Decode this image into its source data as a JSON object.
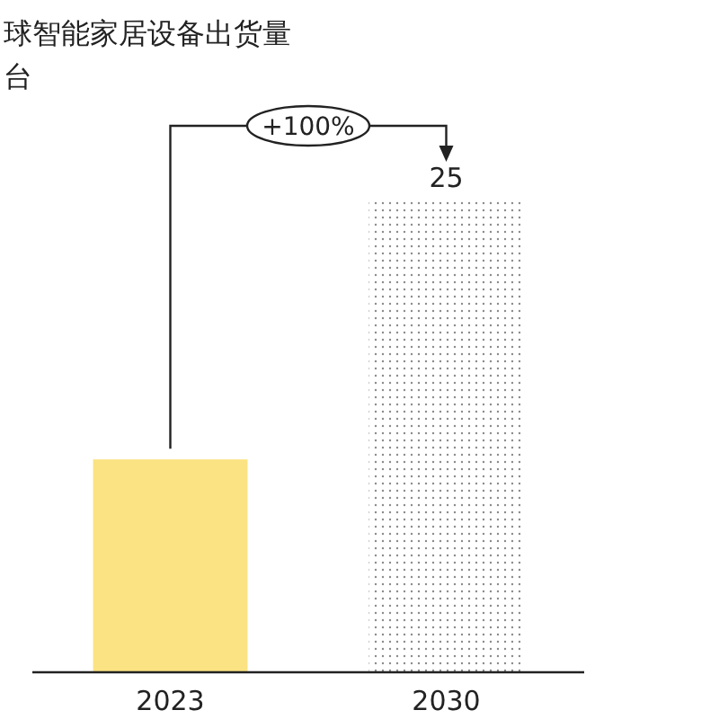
{
  "chart_data": {
    "type": "bar",
    "title": "球智能家居设备出货量",
    "subtitle": "台",
    "categories": [
      "2023",
      "2030"
    ],
    "values": [
      11.3,
      25
    ],
    "value_labels": [
      null,
      "25"
    ],
    "colors": [
      "#fbe383",
      "#8a8a8a"
    ],
    "annotations": [
      "+100%"
    ]
  }
}
